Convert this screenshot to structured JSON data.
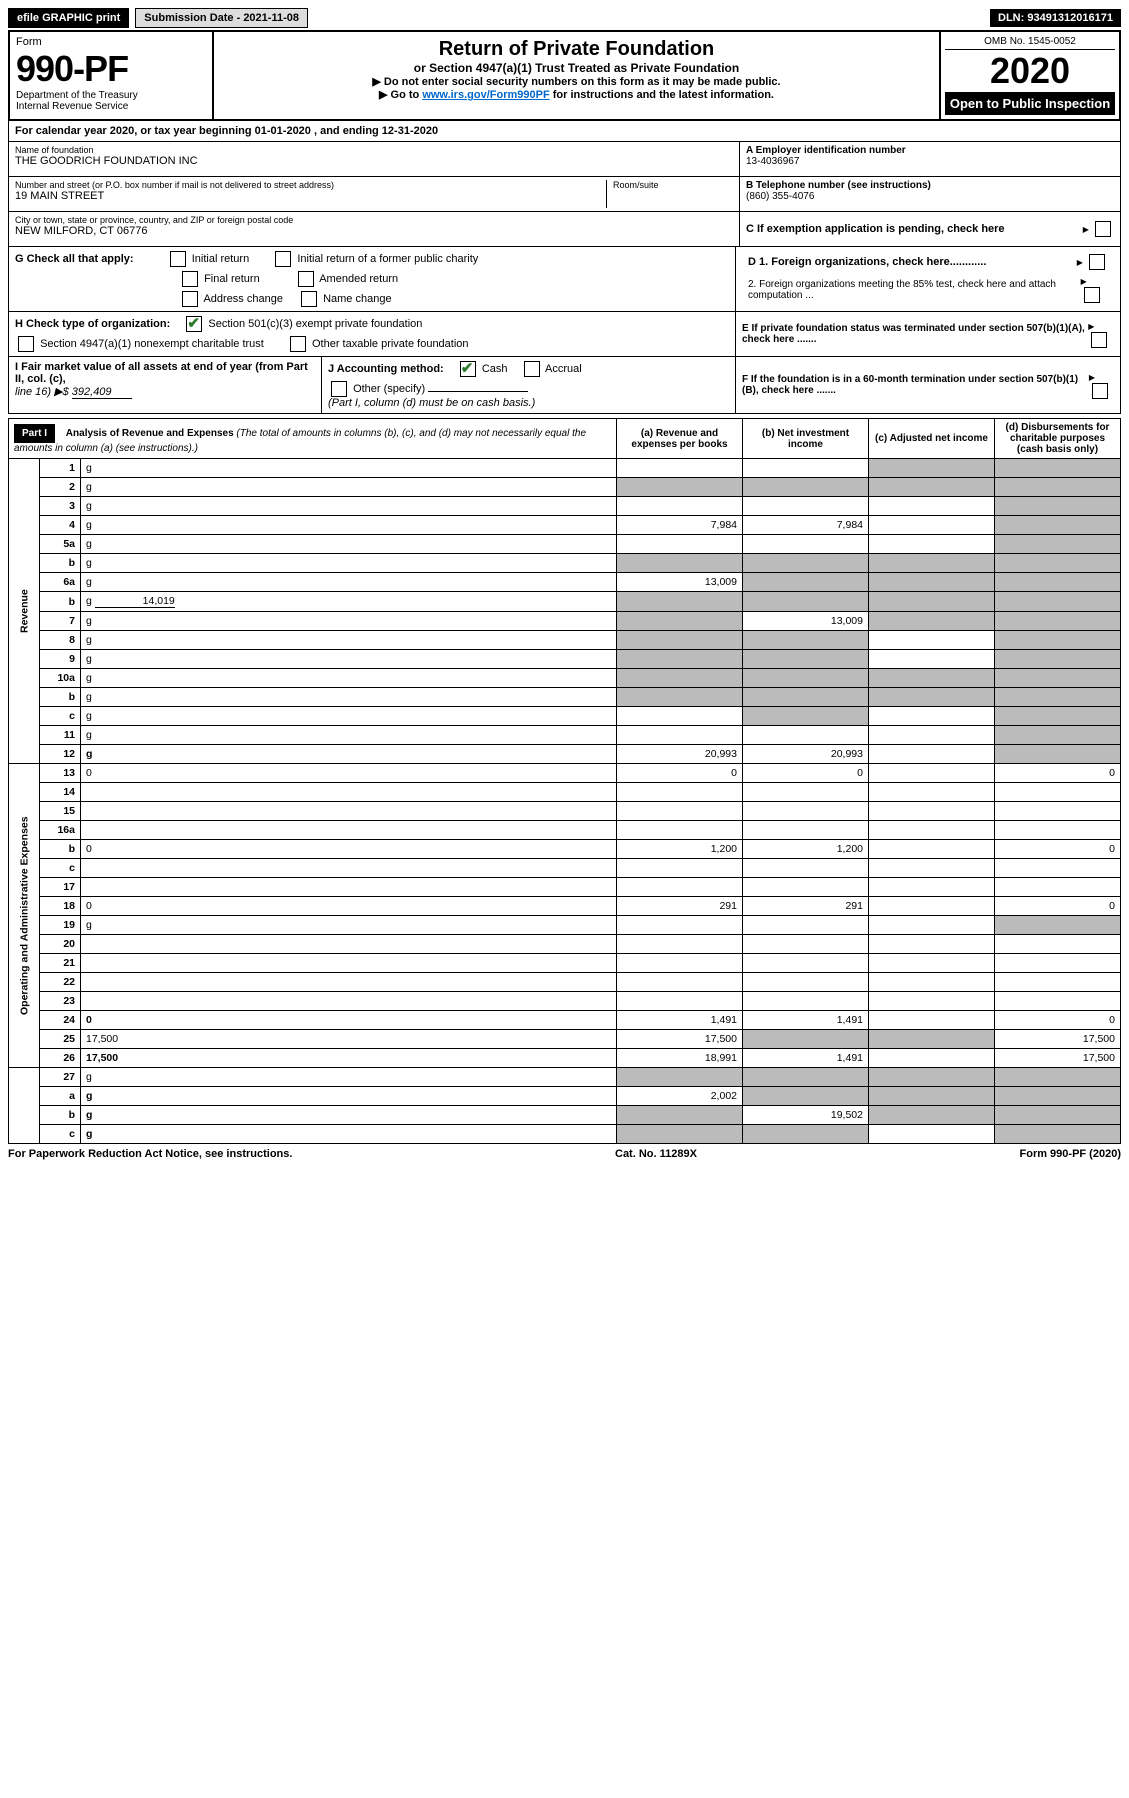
{
  "topbar": {
    "efile": "efile GRAPHIC print",
    "submission": "Submission Date - 2021-11-08",
    "dln": "DLN: 93491312016171"
  },
  "header": {
    "form_label": "Form",
    "form_no": "990-PF",
    "dept": "Department of the Treasury\nInternal Revenue Service",
    "title": "Return of Private Foundation",
    "subtitle": "or Section 4947(a)(1) Trust Treated as Private Foundation",
    "instr1": "▶ Do not enter social security numbers on this form as it may be made public.",
    "instr2_pre": "▶ Go to ",
    "instr2_link": "www.irs.gov/Form990PF",
    "instr2_post": " for instructions and the latest information.",
    "omb": "OMB No. 1545-0052",
    "year": "2020",
    "open": "Open to Public Inspection"
  },
  "cal": "For calendar year 2020, or tax year beginning 01-01-2020           , and ending 12-31-2020",
  "id": {
    "name_label": "Name of foundation",
    "name": "THE GOODRICH FOUNDATION INC",
    "addr_label": "Number and street (or P.O. box number if mail is not delivered to street address)",
    "addr": "19 MAIN STREET",
    "room_label": "Room/suite",
    "city_label": "City or town, state or province, country, and ZIP or foreign postal code",
    "city": "NEW MILFORD, CT  06776",
    "a_label": "A Employer identification number",
    "a_val": "13-4036967",
    "b_label": "B Telephone number (see instructions)",
    "b_val": "(860) 355-4076",
    "c_label": "C If exemption application is pending, check here"
  },
  "g": {
    "label": "G Check all that apply:",
    "opts": [
      "Initial return",
      "Initial return of a former public charity",
      "Final return",
      "Amended return",
      "Address change",
      "Name change"
    ]
  },
  "d": {
    "d1": "D 1. Foreign organizations, check here............",
    "d2": "2. Foreign organizations meeting the 85% test, check here and attach computation ..."
  },
  "h": {
    "label": "H Check type of organization:",
    "o1": "Section 501(c)(3) exempt private foundation",
    "o2": "Section 4947(a)(1) nonexempt charitable trust",
    "o3": "Other taxable private foundation"
  },
  "e": "E If private foundation status was terminated under section 507(b)(1)(A), check here .......",
  "i": {
    "label": "I Fair market value of all assets at end of year (from Part II, col. (c),",
    "line": "line 16) ▶$",
    "val": "392,409"
  },
  "j": {
    "label": "J Accounting method:",
    "cash": "Cash",
    "accrual": "Accrual",
    "other": "Other (specify)",
    "note": "(Part I, column (d) must be on cash basis.)"
  },
  "f": "F If the foundation is in a 60-month termination under section 507(b)(1)(B), check here .......",
  "part1": {
    "label": "Part I",
    "title": "Analysis of Revenue and Expenses",
    "note": "(The total of amounts in columns (b), (c), and (d) may not necessarily equal the amounts in column (a) (see instructions).)",
    "col_a": "(a) Revenue and expenses per books",
    "col_b": "(b) Net investment income",
    "col_c": "(c) Adjusted net income",
    "col_d": "(d) Disbursements for charitable purposes (cash basis only)"
  },
  "rows": {
    "r1": {
      "n": "1",
      "d": "g",
      "a": "",
      "b": "",
      "c": "g"
    },
    "r2": {
      "n": "2",
      "d": "g",
      "a": "g",
      "b": "g",
      "c": "g"
    },
    "r3": {
      "n": "3",
      "d": "g",
      "a": "",
      "b": "",
      "c": ""
    },
    "r4": {
      "n": "4",
      "d": "g",
      "a": "7,984",
      "b": "7,984",
      "c": ""
    },
    "r5a": {
      "n": "5a",
      "d": "g",
      "a": "",
      "b": "",
      "c": ""
    },
    "r5b": {
      "n": "b",
      "d": "g",
      "a": "g",
      "b": "g",
      "c": "g"
    },
    "r6a": {
      "n": "6a",
      "d": "g",
      "a": "13,009",
      "b": "g",
      "c": "g"
    },
    "r6b": {
      "n": "b",
      "d": "g",
      "u": "14,019",
      "a": "g",
      "b": "g",
      "c": "g"
    },
    "r7": {
      "n": "7",
      "d": "g",
      "a": "g",
      "b": "13,009",
      "c": "g"
    },
    "r8": {
      "n": "8",
      "d": "g",
      "a": "g",
      "b": "g",
      "c": ""
    },
    "r9": {
      "n": "9",
      "d": "g",
      "a": "g",
      "b": "g",
      "c": ""
    },
    "r10a": {
      "n": "10a",
      "d": "g",
      "a": "g",
      "b": "g",
      "c": "g"
    },
    "r10b": {
      "n": "b",
      "d": "g",
      "a": "g",
      "b": "g",
      "c": "g"
    },
    "r10c": {
      "n": "c",
      "d": "g",
      "a": "",
      "b": "g",
      "c": ""
    },
    "r11": {
      "n": "11",
      "d": "g",
      "a": "",
      "b": "",
      "c": ""
    },
    "r12": {
      "n": "12",
      "d": "g",
      "bold": true,
      "a": "20,993",
      "b": "20,993",
      "c": ""
    },
    "r13": {
      "n": "13",
      "d": "0",
      "a": "0",
      "b": "0",
      "c": ""
    },
    "r14": {
      "n": "14",
      "d": "",
      "a": "",
      "b": "",
      "c": ""
    },
    "r15": {
      "n": "15",
      "d": "",
      "a": "",
      "b": "",
      "c": ""
    },
    "r16a": {
      "n": "16a",
      "d": "",
      "a": "",
      "b": "",
      "c": ""
    },
    "r16b": {
      "n": "b",
      "d": "0",
      "a": "1,200",
      "b": "1,200",
      "c": ""
    },
    "r16c": {
      "n": "c",
      "d": "",
      "a": "",
      "b": "",
      "c": ""
    },
    "r17": {
      "n": "17",
      "d": "",
      "a": "",
      "b": "",
      "c": ""
    },
    "r18": {
      "n": "18",
      "d": "0",
      "a": "291",
      "b": "291",
      "c": ""
    },
    "r19": {
      "n": "19",
      "d": "g",
      "a": "",
      "b": "",
      "c": ""
    },
    "r20": {
      "n": "20",
      "d": "",
      "a": "",
      "b": "",
      "c": ""
    },
    "r21": {
      "n": "21",
      "d": "",
      "a": "",
      "b": "",
      "c": ""
    },
    "r22": {
      "n": "22",
      "d": "",
      "a": "",
      "b": "",
      "c": ""
    },
    "r23": {
      "n": "23",
      "d": "",
      "a": "",
      "b": "",
      "c": ""
    },
    "r24": {
      "n": "24",
      "d": "0",
      "bold": true,
      "a": "1,491",
      "b": "1,491",
      "c": ""
    },
    "r25": {
      "n": "25",
      "d": "17,500",
      "a": "17,500",
      "b": "g",
      "c": "g"
    },
    "r26": {
      "n": "26",
      "d": "17,500",
      "bold": true,
      "a": "18,991",
      "b": "1,491",
      "c": ""
    },
    "r27": {
      "n": "27",
      "d": "g",
      "a": "g",
      "b": "g",
      "c": "g"
    },
    "r27a": {
      "n": "a",
      "d": "g",
      "bold": true,
      "a": "2,002",
      "b": "g",
      "c": "g"
    },
    "r27b": {
      "n": "b",
      "d": "g",
      "bold": true,
      "a": "g",
      "b": "19,502",
      "c": "g"
    },
    "r27c": {
      "n": "c",
      "d": "g",
      "bold": true,
      "a": "g",
      "b": "g",
      "c": ""
    }
  },
  "side": {
    "rev": "Revenue",
    "exp": "Operating and Administrative Expenses"
  },
  "footer": {
    "left": "For Paperwork Reduction Act Notice, see instructions.",
    "mid": "Cat. No. 11289X",
    "right": "Form 990-PF (2020)"
  }
}
